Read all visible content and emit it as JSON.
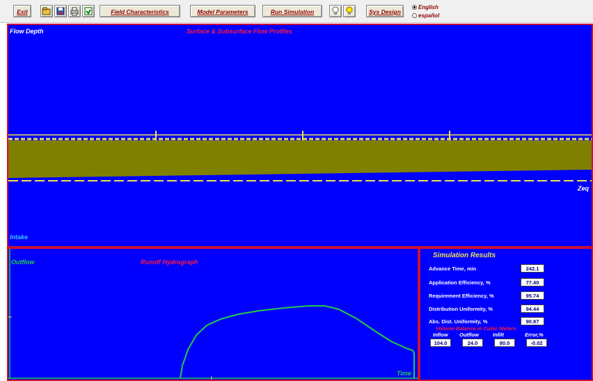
{
  "toolbar": {
    "exit_label": "Exit",
    "field_label": "Field Characteristics",
    "model_label": "Model Parameters",
    "run_label": "Run Simulation",
    "design_label": "Sys Design",
    "units": {
      "english": "English",
      "espanol": "español",
      "selected": "english"
    },
    "icons": [
      "open-file-icon",
      "save-file-icon",
      "print-icon",
      "import-icon",
      "bulb-off-icon",
      "bulb-on-icon"
    ]
  },
  "profiles": {
    "title": "Surface & Subsurface Flow Profiles",
    "y_label": "Flow Depth",
    "bottom_label": "Intake",
    "right_label": "Zeq",
    "colors": {
      "surface": "#808000",
      "line": "#f0e050",
      "bg": "#0000ff"
    }
  },
  "hydrograph": {
    "title": "Runoff Hydrograph",
    "y_label": "Outflow",
    "x_label": "Time",
    "line_color": "#22cc44"
  },
  "results": {
    "title": "Simulation Results",
    "rows": [
      {
        "label": "Advance Time, min",
        "value": "242.1"
      },
      {
        "label": "Application Efficiency, %",
        "value": "77.40"
      },
      {
        "label": "Requirement Efficiency, %",
        "value": "95.74"
      },
      {
        "label": "Distribution Uniformity, %",
        "value": "94.44"
      },
      {
        "label": "Abs. Dist. Uniformity, %",
        "value": "90.87"
      }
    ],
    "volume_title": "Volume Balance in Cubic Meters",
    "volume": [
      {
        "label": "Inflow",
        "value": "104.0"
      },
      {
        "label": "Outflow",
        "value": "24.0"
      },
      {
        "label": "Infilt",
        "value": "80.0"
      },
      {
        "label": "Error,%",
        "value": "-0.02"
      }
    ]
  }
}
